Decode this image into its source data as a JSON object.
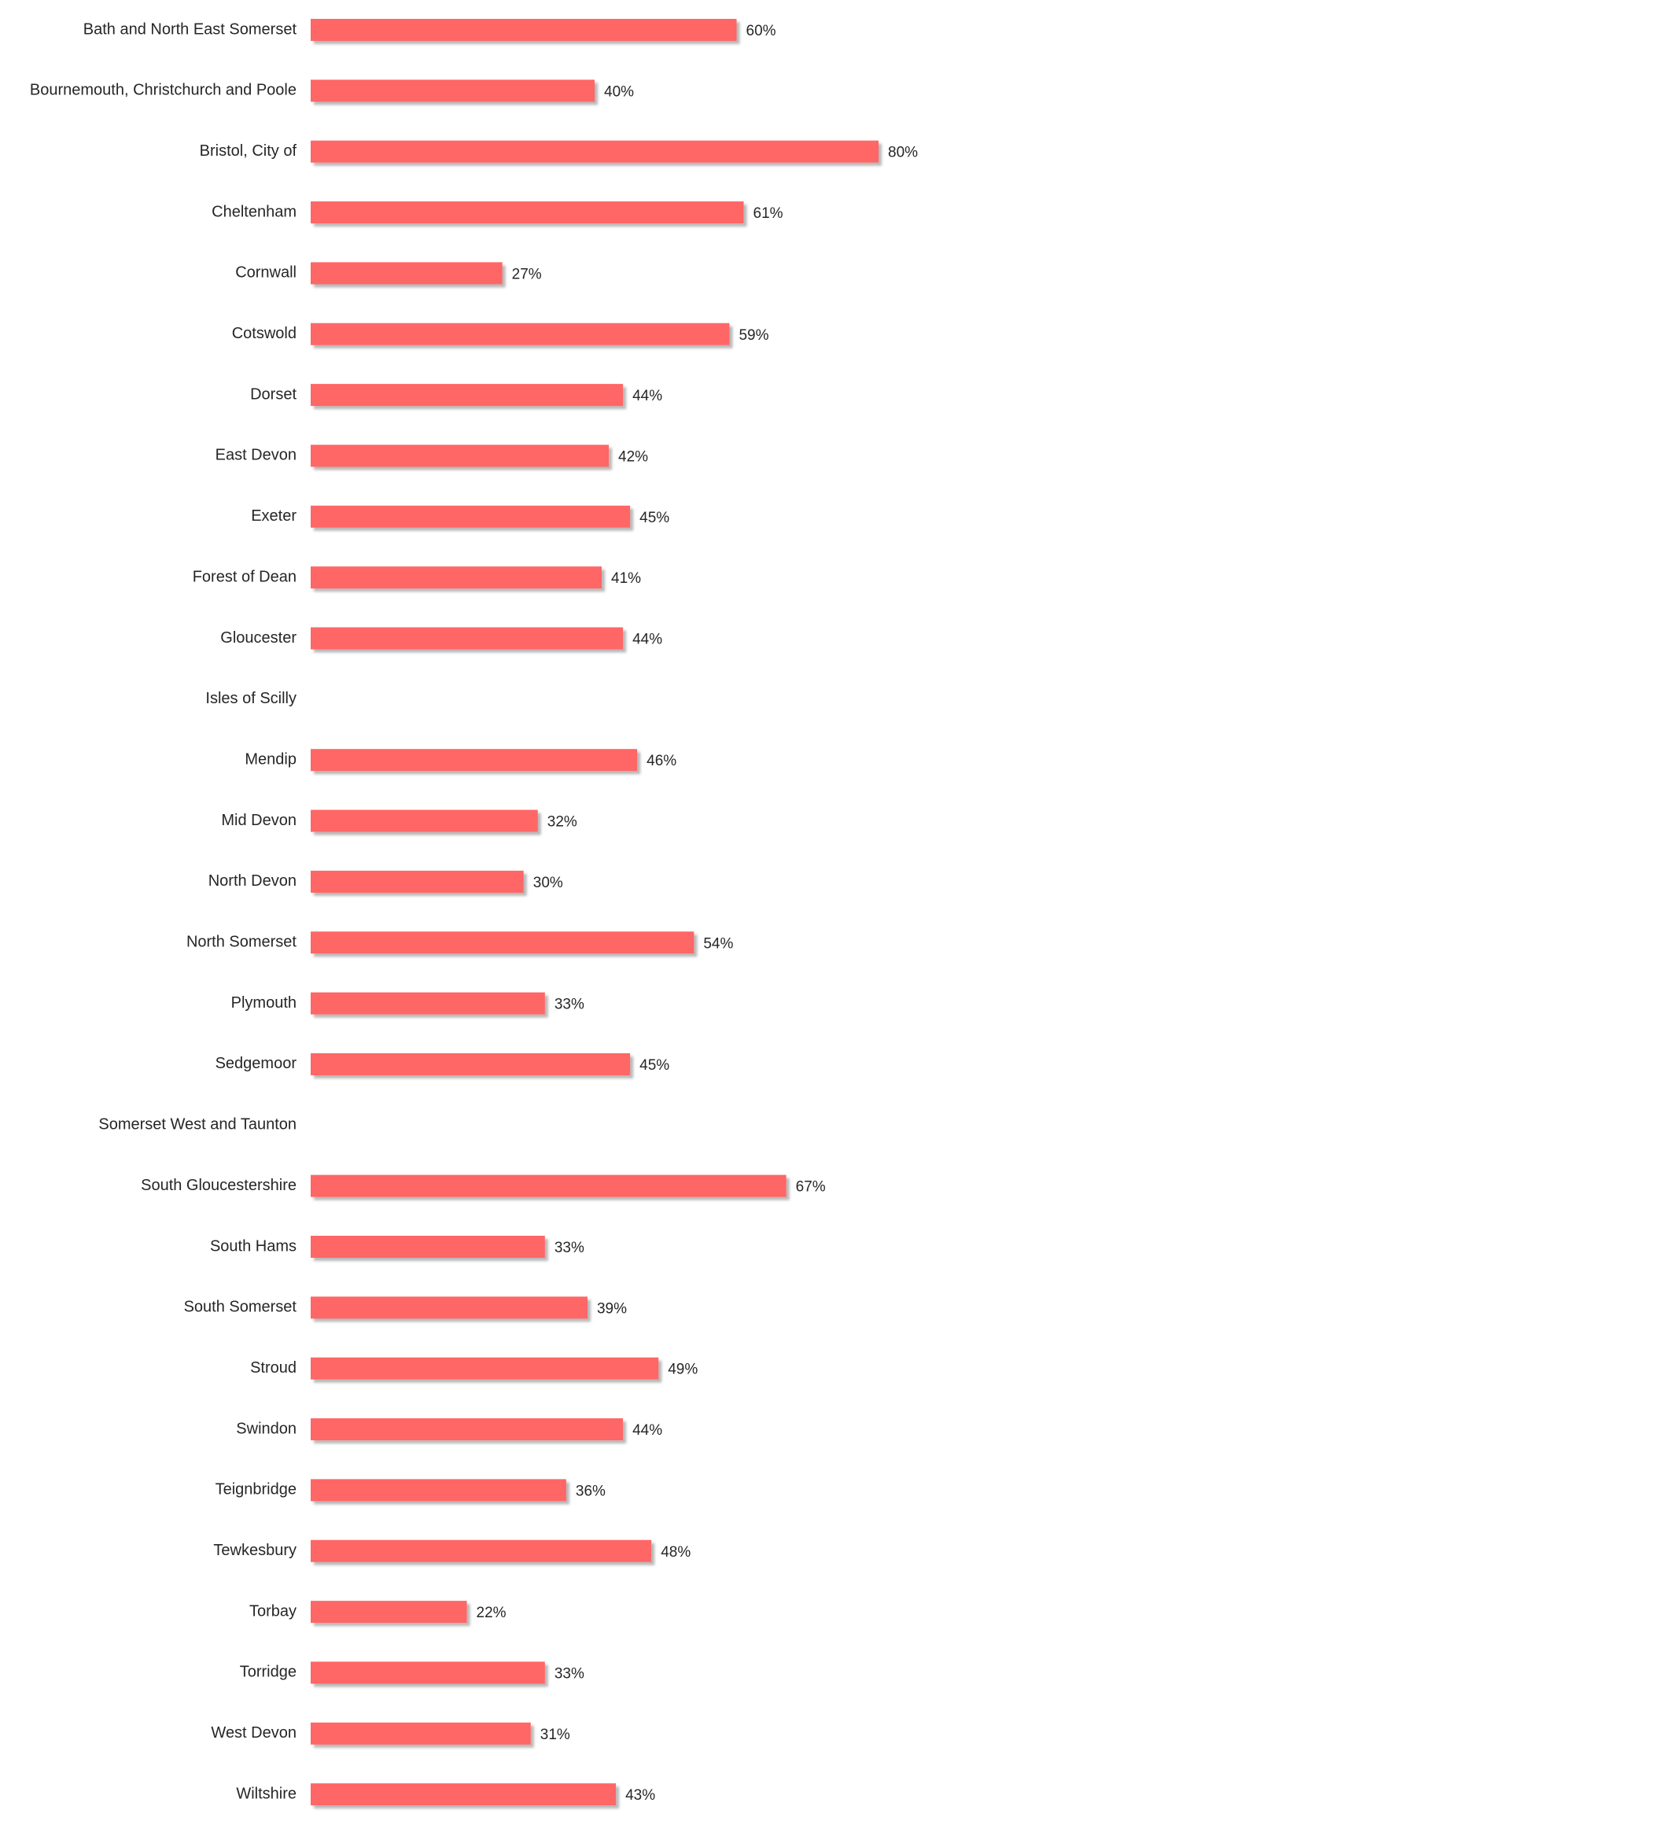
{
  "chart_data": {
    "type": "bar",
    "orientation": "horizontal",
    "title": "",
    "xlabel": "",
    "ylabel": "",
    "grid": false,
    "xlim": [
      0,
      1
    ],
    "bar_color": "#ff6666",
    "categories": [
      "Bath and North East Somerset",
      "Bournemouth, Christchurch and Poole",
      "Bristol, City of",
      "Cheltenham",
      "Cornwall",
      "Cotswold",
      "Dorset",
      "East Devon",
      "Exeter",
      "Forest of Dean",
      "Gloucester",
      "Isles of Scilly",
      "Mendip",
      "Mid Devon",
      "North Devon",
      "North Somerset",
      "Plymouth",
      "Sedgemoor",
      "Somerset West and Taunton",
      "South Gloucestershire",
      "South Hams",
      "South Somerset",
      "Stroud",
      "Swindon",
      "Teignbridge",
      "Tewkesbury",
      "Torbay",
      "Torridge",
      "West Devon",
      "Wiltshire"
    ],
    "values": [
      0.6,
      0.4,
      0.8,
      0.61,
      0.27,
      0.59,
      0.44,
      0.42,
      0.45,
      0.41,
      0.44,
      null,
      0.46,
      0.32,
      0.3,
      0.54,
      0.33,
      0.45,
      null,
      0.67,
      0.33,
      0.39,
      0.49,
      0.44,
      0.36,
      0.48,
      0.22,
      0.33,
      0.31,
      0.43
    ],
    "value_labels": [
      "60%",
      "40%",
      "80%",
      "61%",
      "27%",
      "59%",
      "44%",
      "42%",
      "45%",
      "41%",
      "44%",
      "",
      "46%",
      "32%",
      "30%",
      "54%",
      "33%",
      "45%",
      "",
      "67%",
      "33%",
      "39%",
      "49%",
      "44%",
      "36%",
      "48%",
      "22%",
      "33%",
      "31%",
      "43%"
    ]
  }
}
